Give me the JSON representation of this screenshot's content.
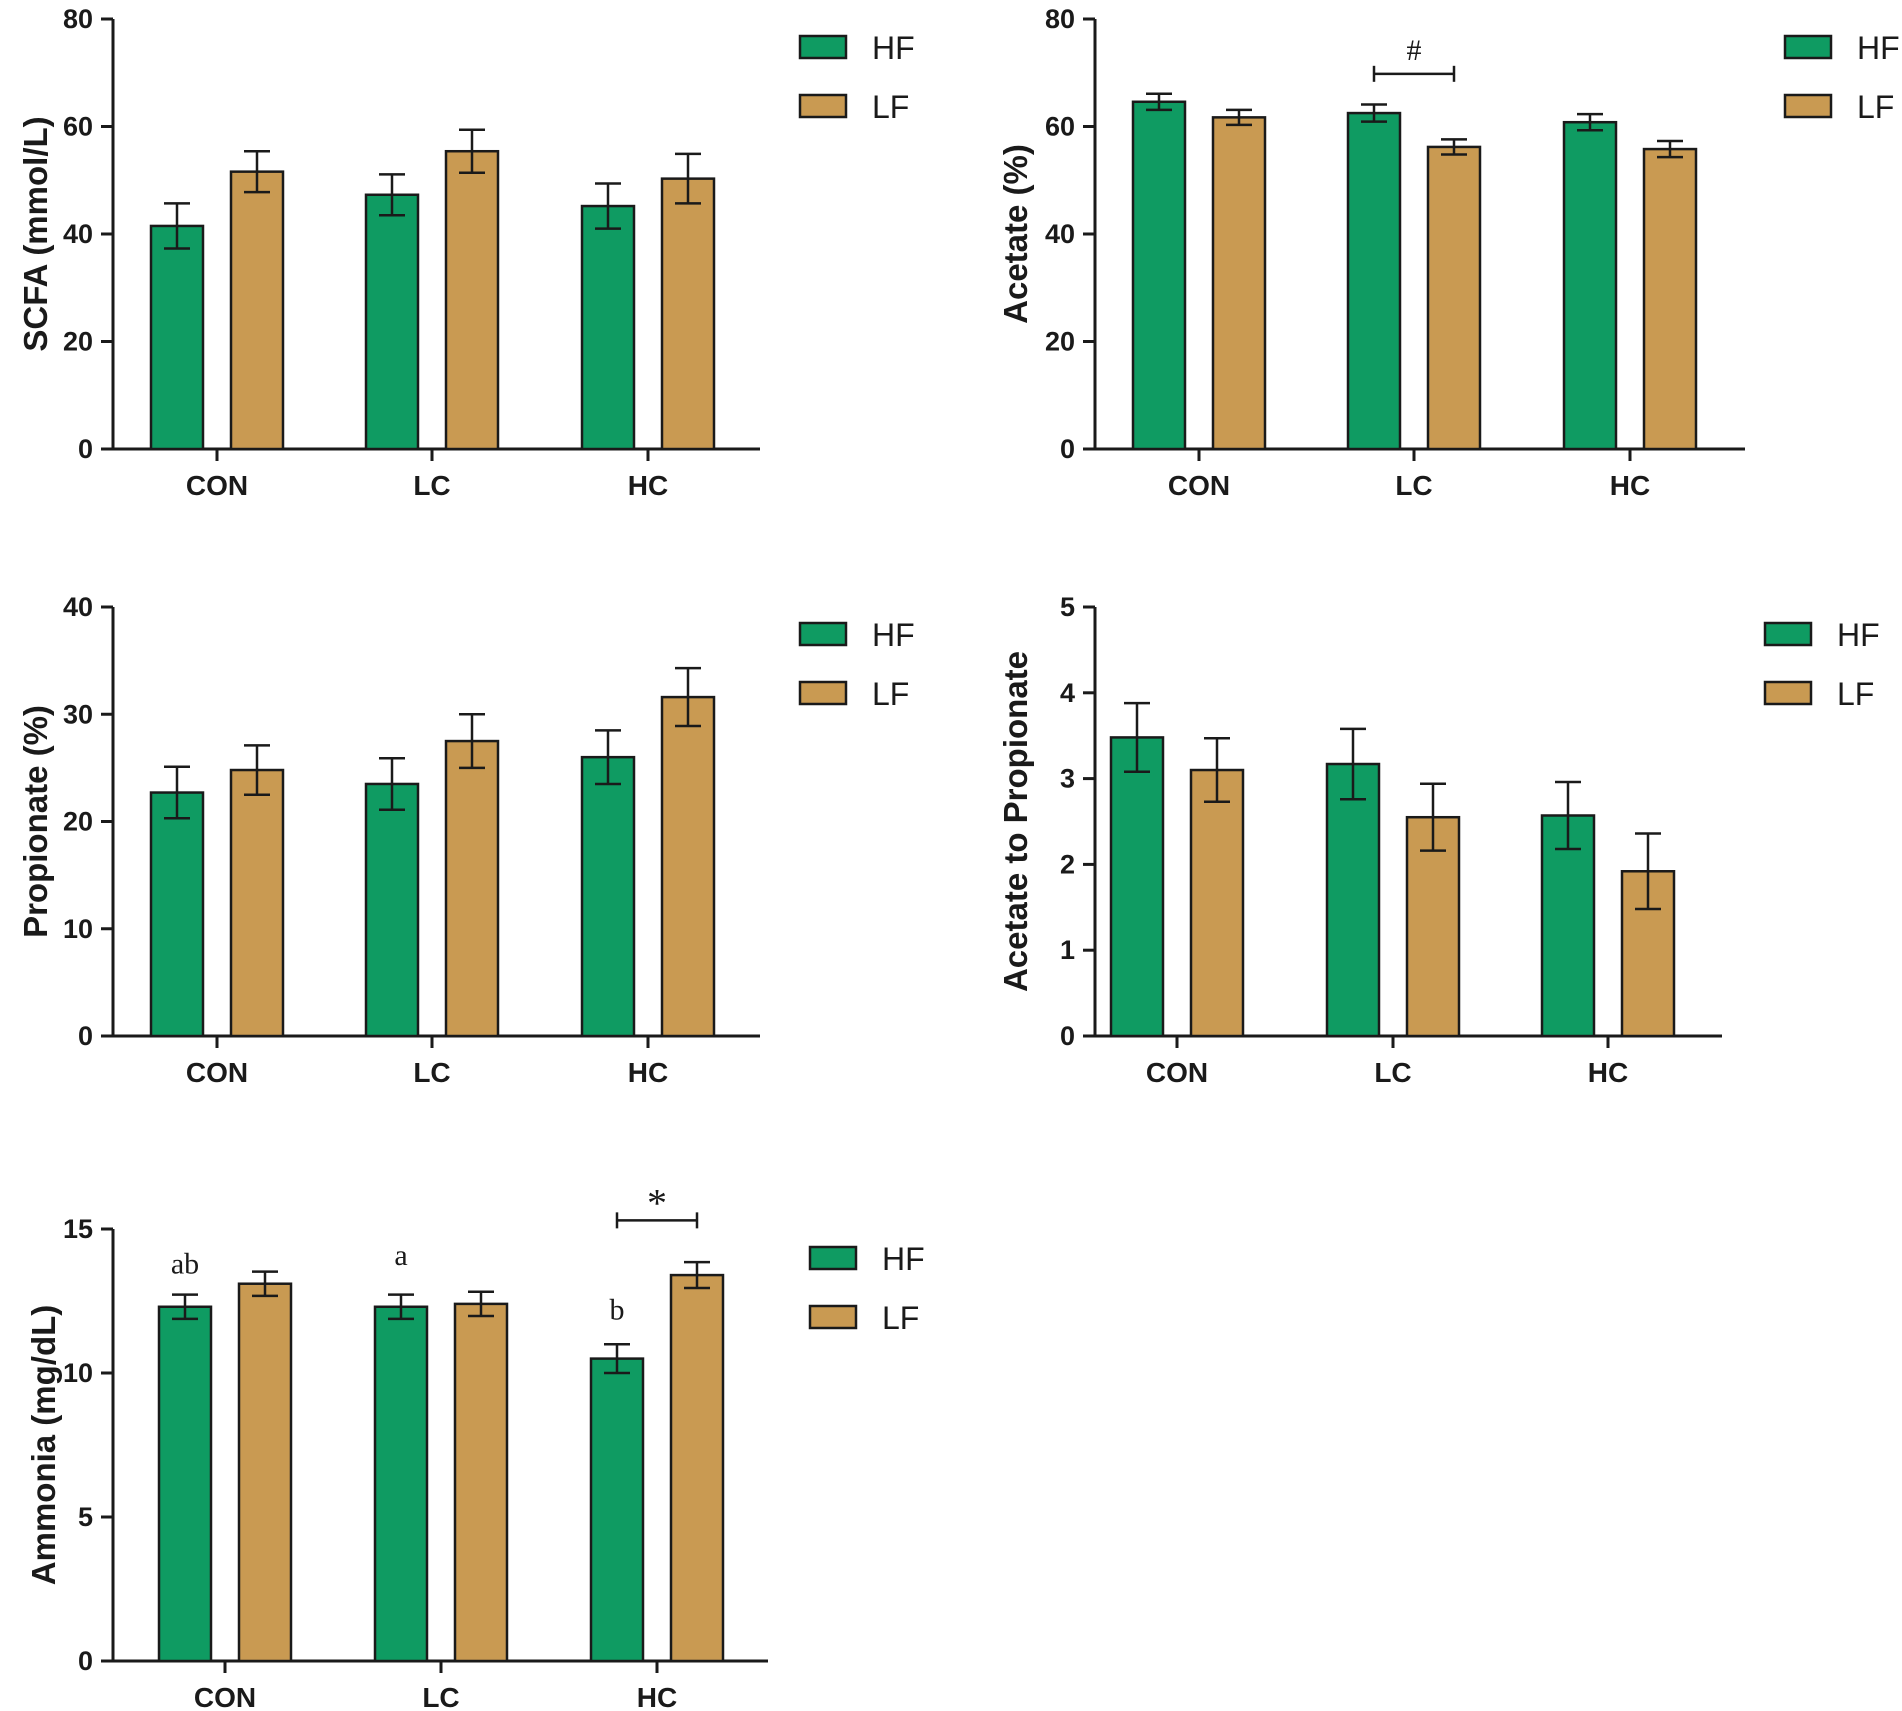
{
  "colors": {
    "hf": "#0f9b62",
    "lf": "#c99a52",
    "axis": "#1a1a1a"
  },
  "chart_data": [
    {
      "type": "bar",
      "ylabel": "SCFA (mmol/L)",
      "ylim": [
        0,
        80
      ],
      "yticks": [
        "0",
        "20",
        "40",
        "60",
        "80"
      ],
      "categories": [
        "CON",
        "LC",
        "HC"
      ],
      "series": [
        {
          "name": "HF",
          "values": [
            41.5,
            47.3,
            45.2
          ],
          "errors": [
            4.2,
            3.8,
            4.2
          ]
        },
        {
          "name": "LF",
          "values": [
            51.6,
            55.4,
            50.3
          ],
          "errors": [
            3.8,
            4.0,
            4.6
          ]
        }
      ],
      "legend": [
        "HF",
        "LF"
      ],
      "legend_position": "top-right",
      "annotations": []
    },
    {
      "type": "bar",
      "ylabel": "Acetate (%)",
      "ylim": [
        0,
        80
      ],
      "yticks": [
        "0",
        "20",
        "40",
        "60",
        "80"
      ],
      "categories": [
        "CON",
        "LC",
        "HC"
      ],
      "series": [
        {
          "name": "HF",
          "values": [
            64.6,
            62.5,
            60.8
          ],
          "errors": [
            1.5,
            1.6,
            1.5
          ]
        },
        {
          "name": "LF",
          "values": [
            61.7,
            56.2,
            55.8
          ],
          "errors": [
            1.4,
            1.4,
            1.5
          ]
        }
      ],
      "legend": [
        "HF",
        "LF"
      ],
      "legend_position": "top-right",
      "annotations": [
        {
          "type": "bracket",
          "category_index": 1,
          "y": 69.8,
          "text": "#"
        }
      ]
    },
    {
      "type": "bar",
      "ylabel": "Propionate (%)",
      "ylim": [
        0,
        40
      ],
      "yticks": [
        "0",
        "10",
        "20",
        "30",
        "40"
      ],
      "categories": [
        "CON",
        "LC",
        "HC"
      ],
      "series": [
        {
          "name": "HF",
          "values": [
            22.7,
            23.5,
            26.0
          ],
          "errors": [
            2.4,
            2.4,
            2.5
          ]
        },
        {
          "name": "LF",
          "values": [
            24.8,
            27.5,
            31.6
          ],
          "errors": [
            2.3,
            2.5,
            2.7
          ]
        }
      ],
      "legend": [
        "HF",
        "LF"
      ],
      "legend_position": "top-right",
      "annotations": []
    },
    {
      "type": "bar",
      "ylabel": "Acetate to Propionate",
      "ylim": [
        0,
        5
      ],
      "yticks": [
        "0",
        "1",
        "2",
        "3",
        "4",
        "5"
      ],
      "categories": [
        "CON",
        "LC",
        "HC"
      ],
      "series": [
        {
          "name": "HF",
          "values": [
            3.48,
            3.17,
            2.57
          ],
          "errors": [
            0.4,
            0.41,
            0.39
          ]
        },
        {
          "name": "LF",
          "values": [
            3.1,
            2.55,
            1.92
          ],
          "errors": [
            0.37,
            0.39,
            0.44
          ]
        }
      ],
      "legend": [
        "HF",
        "LF"
      ],
      "legend_position": "top-right",
      "annotations": []
    },
    {
      "type": "bar",
      "ylabel": "Ammonia (mg/dL)",
      "ylim": [
        0,
        15
      ],
      "yticks": [
        "0",
        "5",
        "10",
        "15"
      ],
      "categories": [
        "CON",
        "LC",
        "HC"
      ],
      "series": [
        {
          "name": "HF",
          "values": [
            12.3,
            12.3,
            10.5
          ],
          "errors": [
            0.42,
            0.42,
            0.5
          ]
        },
        {
          "name": "LF",
          "values": [
            13.1,
            12.4,
            13.4
          ],
          "errors": [
            0.42,
            0.42,
            0.45
          ]
        }
      ],
      "legend": [
        "HF",
        "LF"
      ],
      "legend_position": "top-right",
      "annotations": [
        {
          "type": "letter",
          "category_index": 0,
          "series_index": 0,
          "y": 13.8,
          "text": "ab"
        },
        {
          "type": "letter",
          "category_index": 1,
          "series_index": 0,
          "y": 14.1,
          "text": "a"
        },
        {
          "type": "letter",
          "category_index": 2,
          "series_index": 0,
          "y": 12.2,
          "text": "b"
        },
        {
          "type": "bracket",
          "category_index": 2,
          "y": 15.3,
          "text": "*"
        }
      ]
    }
  ]
}
